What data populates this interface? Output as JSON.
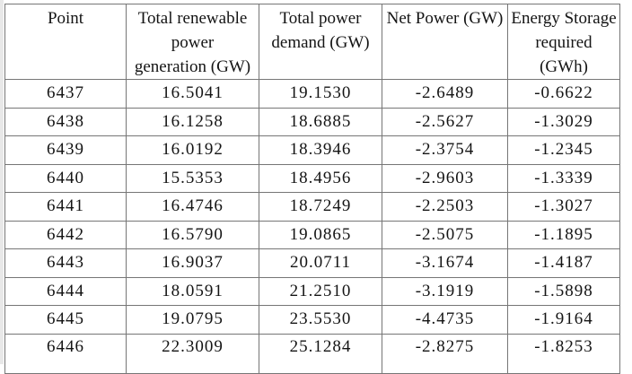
{
  "page": {
    "background_color": "#ffffff",
    "edge_color": "#e8e8e8"
  },
  "table": {
    "border_color": "#767676",
    "text_color": "#141414",
    "columns": [
      {
        "id": "point",
        "label": "Point"
      },
      {
        "id": "renewable-generation",
        "label": "Total renewable\npower\ngeneration (GW)"
      },
      {
        "id": "power-demand",
        "label": "Total power\ndemand (GW)"
      },
      {
        "id": "net-power",
        "label": "Net Power (GW)"
      },
      {
        "id": "energy-storage",
        "label": "Energy Storage\nrequired (GWh)"
      }
    ],
    "rows": [
      [
        "6437",
        "16.5041",
        "19.1530",
        "-2.6489",
        "-0.6622"
      ],
      [
        "6438",
        "16.1258",
        "18.6885",
        "-2.5627",
        "-1.3029"
      ],
      [
        "6439",
        "16.0192",
        "18.3946",
        "-2.3754",
        "-1.2345"
      ],
      [
        "6440",
        "15.5353",
        "18.4956",
        "-2.9603",
        "-1.3339"
      ],
      [
        "6441",
        "16.4746",
        "18.7249",
        "-2.2503",
        "-1.3027"
      ],
      [
        "6442",
        "16.5790",
        "19.0865",
        "-2.5075",
        "-1.1895"
      ],
      [
        "6443",
        "16.9037",
        "20.0711",
        "-3.1674",
        "-1.4187"
      ],
      [
        "6444",
        "18.0591",
        "21.2510",
        "-3.1919",
        "-1.5898"
      ],
      [
        "6445",
        "19.0795",
        "23.5530",
        "-4.4735",
        "-1.9164"
      ],
      [
        "6446",
        "22.3009",
        "25.1284",
        "-2.8275",
        "-1.8253"
      ]
    ]
  }
}
